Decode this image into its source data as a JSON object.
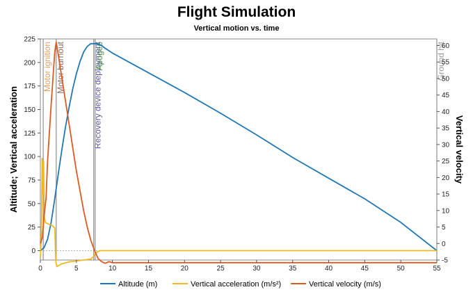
{
  "chart_data": {
    "type": "line",
    "title": "Flight Simulation",
    "subtitle": "Vertical motion vs. time",
    "xlabel": "",
    "ylabel_left": "Altitude; Vertical acceleration",
    "ylabel_right": "Vertical velocity",
    "xlim": [
      0,
      55
    ],
    "ylim_left": [
      -10,
      225
    ],
    "ylim_right": [
      -5,
      62
    ],
    "xticks": [
      0,
      5,
      10,
      15,
      20,
      25,
      30,
      35,
      40,
      45,
      50,
      55
    ],
    "yticks_left": [
      0,
      25,
      50,
      75,
      100,
      125,
      150,
      175,
      200,
      225
    ],
    "yticks_right": [
      -5,
      0,
      5,
      10,
      15,
      20,
      25,
      30,
      35,
      40,
      45,
      50,
      55,
      60
    ],
    "grid": false,
    "legend_position": "bottom",
    "events": [
      {
        "label": "Motor ignition",
        "t": 0.4,
        "color": "#e0a060"
      },
      {
        "label": "Motor burnout",
        "t": 2.2,
        "color": "#8a6a60"
      },
      {
        "label": "Recovery device deployment",
        "t": 7.4,
        "color": "#5a5aa0"
      },
      {
        "label": "Apogee",
        "t": 7.6,
        "color": "#4a8a4a"
      },
      {
        "label": "Ground hit",
        "t": 55.0,
        "color": "#999999"
      }
    ],
    "series": [
      {
        "name": "Altitude (m)",
        "axis": "left",
        "color": "#1f77b4",
        "x": [
          0,
          0.5,
          1,
          1.5,
          2,
          2.5,
          3,
          3.5,
          4,
          4.5,
          5,
          5.5,
          6,
          6.5,
          7,
          7.5,
          8,
          8.5,
          9,
          10,
          15,
          20,
          25,
          30,
          35,
          40,
          45,
          50,
          55
        ],
        "y": [
          0,
          3,
          12,
          30,
          55,
          82,
          108,
          132,
          153,
          172,
          188,
          201,
          211,
          217,
          220,
          220,
          219.5,
          218,
          215,
          210,
          189,
          168,
          146,
          123,
          99,
          77,
          55,
          30,
          0
        ]
      },
      {
        "name": "Vertical acceleration (m/s²)",
        "axis": "left",
        "color": "#f0b920",
        "x": [
          0,
          0.15,
          0.25,
          0.35,
          0.45,
          0.55,
          0.7,
          0.9,
          1.2,
          1.6,
          2.0,
          2.15,
          2.3,
          2.5,
          3,
          4,
          5,
          6,
          7,
          7.4,
          7.6,
          8.0,
          8.3,
          9,
          15,
          25,
          35,
          45,
          55
        ],
        "y": [
          -8,
          20,
          98,
          60,
          95,
          35,
          30,
          29,
          28,
          27,
          24,
          -12,
          -17,
          -16,
          -14,
          -12,
          -11,
          -10,
          -9,
          -6,
          -3,
          -1,
          0,
          0,
          0,
          0,
          0,
          0,
          0
        ]
      },
      {
        "name": "Vertical velocity (m/s)",
        "axis": "right",
        "color": "#e05a20",
        "x": [
          0,
          0.3,
          0.5,
          0.8,
          1.0,
          1.5,
          2.0,
          2.2,
          2.5,
          3,
          3.5,
          4,
          4.5,
          5,
          5.5,
          6,
          6.5,
          7,
          7.5,
          8,
          8.5,
          9,
          9.5,
          10,
          15,
          20,
          25,
          30,
          35,
          40,
          45,
          50,
          55
        ],
        "y": [
          0,
          2,
          8,
          14,
          25,
          42,
          58,
          61,
          57,
          50,
          43,
          36,
          29,
          22,
          16,
          10,
          5,
          1,
          -2,
          -4.5,
          -5.5,
          -6,
          -5.5,
          -5.8,
          -5.8,
          -5.8,
          -5.8,
          -5.8,
          -5.8,
          -5.8,
          -5.8,
          -5.8,
          -5.8
        ]
      }
    ]
  }
}
